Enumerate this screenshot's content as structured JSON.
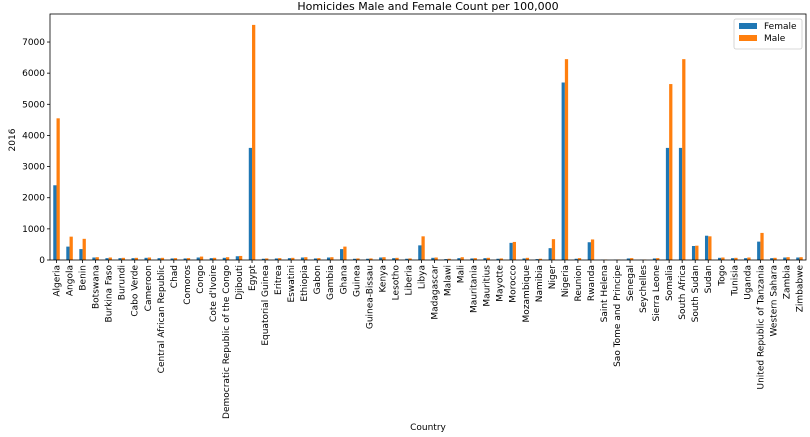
{
  "chart_data": {
    "type": "bar",
    "title": "Homicides Male and Female Count per 100,000",
    "xlabel": "Country",
    "ylabel": "2016",
    "ylim": [
      0,
      7900
    ],
    "yticks": [
      0,
      1000,
      2000,
      3000,
      4000,
      5000,
      6000,
      7000
    ],
    "grid": false,
    "legend_position": "top-right",
    "categories": [
      "Algeria",
      "Angola",
      "Benin",
      "Botswana",
      "Burkina Faso",
      "Burundi",
      "Cabo Verde",
      "Cameroon",
      "Central African Republic",
      "Chad",
      "Comoros",
      "Congo",
      "Cote d'Ivoire",
      "Democratic Republic of the Congo",
      "Djibouti",
      "Egypt",
      "Equatorial Guinea",
      "Eritrea",
      "Eswatini",
      "Ethiopia",
      "Gabon",
      "Gambia",
      "Ghana",
      "Guinea",
      "Guinea-Bissau",
      "Kenya",
      "Lesotho",
      "Liberia",
      "Libya",
      "Madagascar",
      "Malawi",
      "Mali",
      "Mauritania",
      "Mauritius",
      "Mayotte",
      "Morocco",
      "Mozambique",
      "Namibia",
      "Niger",
      "Nigeria",
      "Reunion",
      "Rwanda",
      "Saint Helena",
      "Sao Tome and Principe",
      "Senegal",
      "Seychelles",
      "Sierra Leone",
      "Somalia",
      "South Africa",
      "South Sudan",
      "Sudan",
      "Togo",
      "Tunisia",
      "Uganda",
      "United Republic of Tanzania",
      "Western Sahara",
      "Zambia",
      "Zimbabwe"
    ],
    "series": [
      {
        "name": "Female",
        "color": "#1f77b4",
        "values": [
          2400,
          430,
          350,
          80,
          60,
          60,
          60,
          70,
          60,
          50,
          50,
          80,
          60,
          70,
          120,
          3600,
          40,
          50,
          60,
          80,
          50,
          80,
          350,
          40,
          40,
          80,
          60,
          40,
          470,
          70,
          30,
          60,
          50,
          60,
          40,
          550,
          50,
          30,
          380,
          5700,
          40,
          570,
          10,
          10,
          50,
          10,
          50,
          3600,
          3600,
          450,
          780,
          70,
          60,
          60,
          590,
          60,
          80,
          80
        ]
      },
      {
        "name": "Male",
        "color": "#ff7f0e",
        "values": [
          4550,
          750,
          680,
          90,
          80,
          70,
          70,
          80,
          70,
          60,
          60,
          110,
          70,
          90,
          130,
          7550,
          50,
          60,
          70,
          90,
          60,
          90,
          430,
          50,
          50,
          90,
          70,
          50,
          760,
          80,
          40,
          90,
          60,
          70,
          50,
          580,
          70,
          40,
          670,
          6450,
          60,
          660,
          15,
          15,
          60,
          15,
          60,
          5650,
          6450,
          460,
          760,
          80,
          70,
          80,
          870,
          70,
          90,
          90
        ]
      }
    ]
  }
}
